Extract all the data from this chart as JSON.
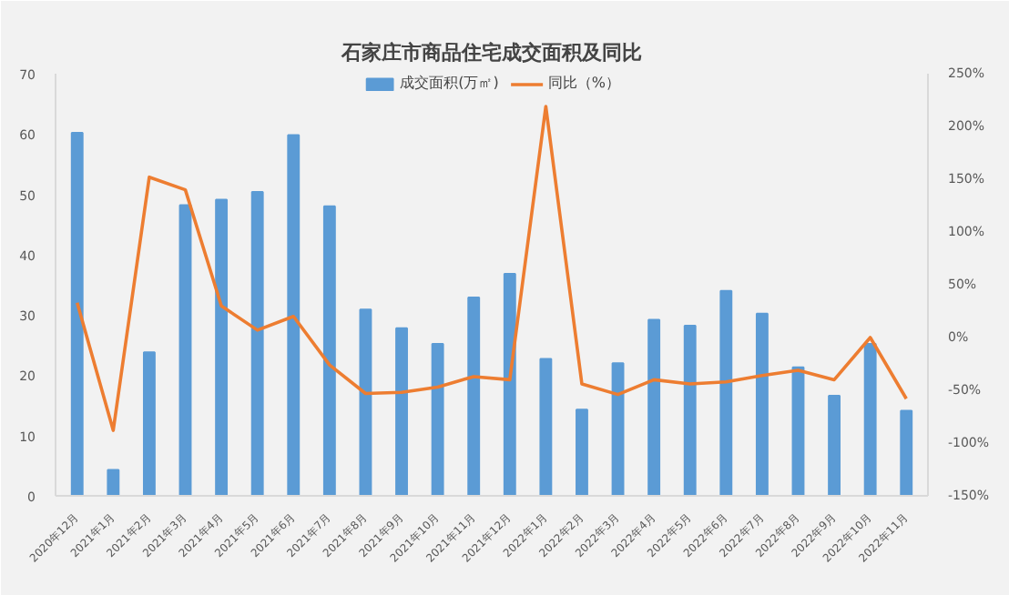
{
  "chart_data": {
    "type": "bar",
    "title": "石家庄市商品住宅成交面积及同比",
    "categories": [
      "2020年12月",
      "2021年1月",
      "2021年2月",
      "2021年3月",
      "2021年4月",
      "2021年5月",
      "2021年6月",
      "2021年7月",
      "2021年8月",
      "2021年9月",
      "2021年10月",
      "2021年11月",
      "2021年12月",
      "2022年1月",
      "2022年2月",
      "2022年3月",
      "2022年4月",
      "2022年5月",
      "2022年6月",
      "2022年7月",
      "2022年8月",
      "2022年9月",
      "2022年10月",
      "2022年11月"
    ],
    "series": [
      {
        "name": "成交面积(万㎡)",
        "color": "#5b9bd5",
        "values": [
          60.2,
          4.3,
          23.8,
          48.2,
          49.1,
          50.4,
          59.8,
          48.0,
          30.9,
          27.8,
          25.2,
          32.9,
          36.8,
          22.7,
          14.3,
          22.0,
          29.2,
          28.2,
          34.0,
          30.2,
          21.3,
          16.6,
          25.2,
          14.1
        ]
      },
      {
        "name": "同比（%）",
        "type": "line",
        "axis": "y2",
        "color": "#ed7d31",
        "values": [
          33,
          -88,
          152,
          140,
          30,
          7,
          20,
          -26,
          -53,
          -52,
          -47,
          -37,
          -40,
          219,
          -44,
          -54,
          -40,
          -44,
          -42,
          -36,
          -31,
          -40,
          0,
          -58
        ]
      }
    ],
    "ylim": [
      0,
      70
    ],
    "yticks": [
      0,
      10,
      20,
      30,
      40,
      50,
      60,
      70
    ],
    "y2lim": [
      -150,
      250
    ],
    "y2ticks": [
      {
        "value": -150,
        "label": "-150%"
      },
      {
        "value": -100,
        "label": "-100%"
      },
      {
        "value": -50,
        "label": "-50%"
      },
      {
        "value": 0,
        "label": "0%"
      },
      {
        "value": 50,
        "label": "50%"
      },
      {
        "value": 100,
        "label": "100%"
      },
      {
        "value": 150,
        "label": "150%"
      },
      {
        "value": 200,
        "label": "200%"
      },
      {
        "value": 250,
        "label": "250%"
      }
    ],
    "grid": false,
    "legend": "top",
    "marker": "none",
    "line_style": "solid"
  }
}
